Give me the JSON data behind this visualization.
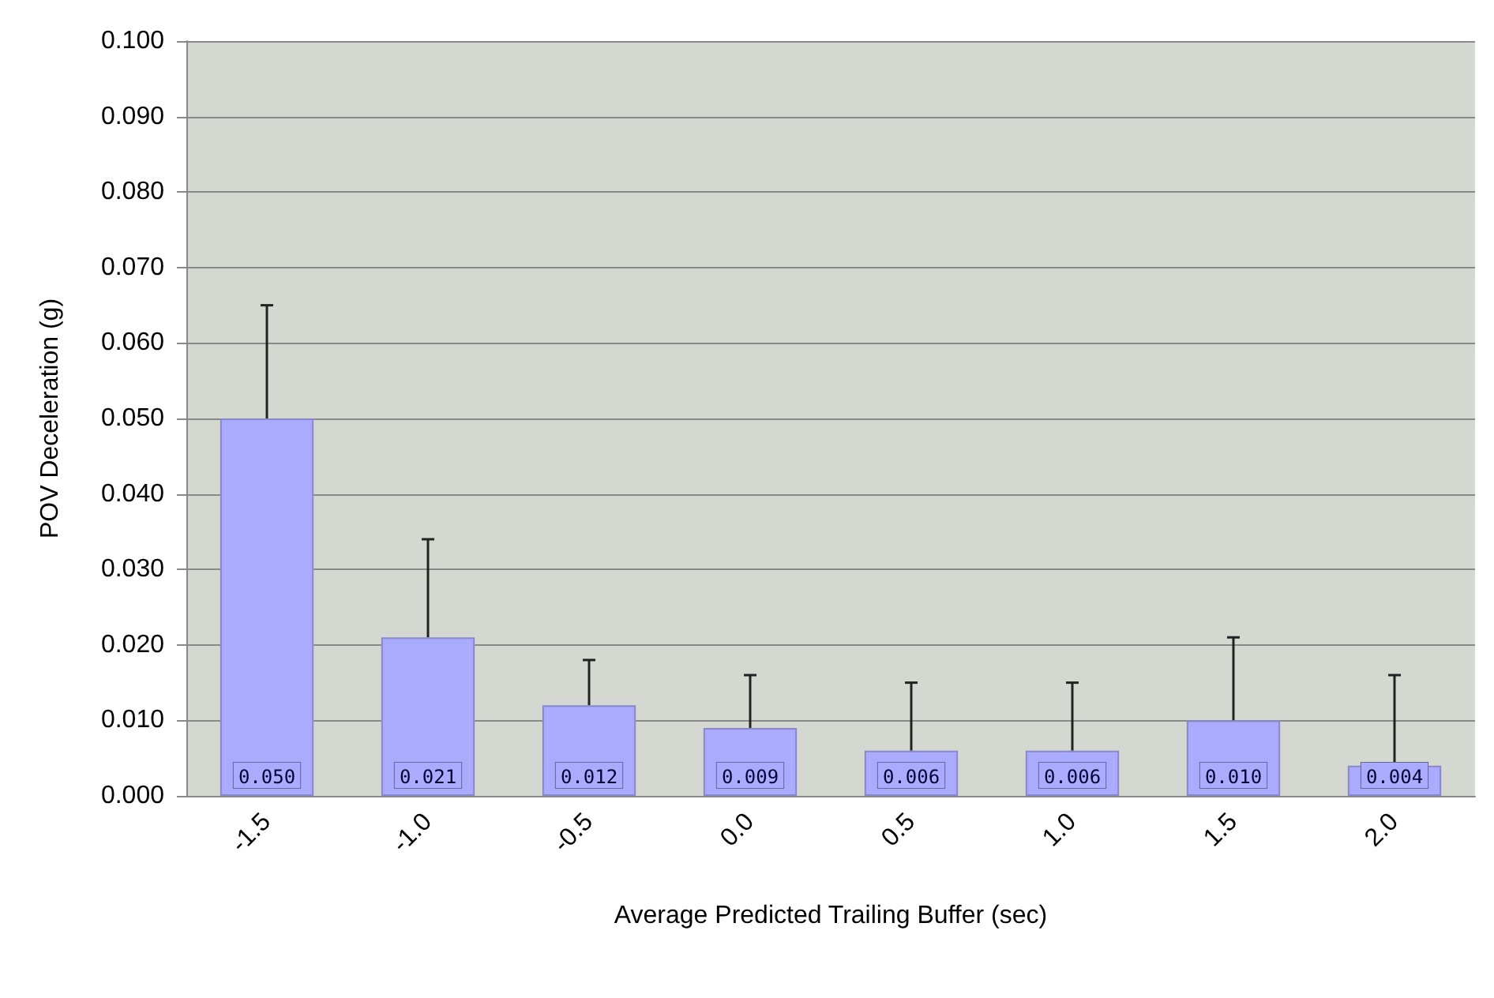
{
  "chart_data": {
    "type": "bar",
    "xlabel": "Average Predicted Trailing Buffer (sec)",
    "ylabel": "POV Deceleration (g)",
    "categories": [
      "-1.5",
      "-1.0",
      "-0.5",
      "0.0",
      "0.5",
      "1.0",
      "1.5",
      "2.0"
    ],
    "values": [
      0.05,
      0.021,
      0.012,
      0.009,
      0.006,
      0.006,
      0.01,
      0.004
    ],
    "value_labels": [
      "0.050",
      "0.021",
      "0.012",
      "0.009",
      "0.006",
      "0.006",
      "0.010",
      "0.004"
    ],
    "errors": [
      [
        0.05,
        0.065
      ],
      [
        0.021,
        0.034
      ],
      [
        0.012,
        0.018
      ],
      [
        0.009,
        0.016
      ],
      [
        0.006,
        0.015
      ],
      [
        0.006,
        0.015
      ],
      [
        0.01,
        0.021
      ],
      [
        0.004,
        0.016
      ]
    ],
    "color": "#aaaaff",
    "ylim": [
      0,
      0.1
    ],
    "yticks": [
      {
        "value": 0,
        "label": "0.000"
      },
      {
        "value": 0.01,
        "label": "0.010"
      },
      {
        "value": 0.02,
        "label": "0.020"
      },
      {
        "value": 0.03,
        "label": "0.030"
      },
      {
        "value": 0.04,
        "label": "0.040"
      },
      {
        "value": 0.05,
        "label": "0.050"
      },
      {
        "value": 0.06,
        "label": "0.060"
      },
      {
        "value": 0.07,
        "label": "0.070"
      },
      {
        "value": 0.08,
        "label": "0.080"
      },
      {
        "value": 0.09,
        "label": "0.090"
      },
      {
        "value": 0.1,
        "label": "0.100"
      }
    ],
    "grid": "y"
  }
}
